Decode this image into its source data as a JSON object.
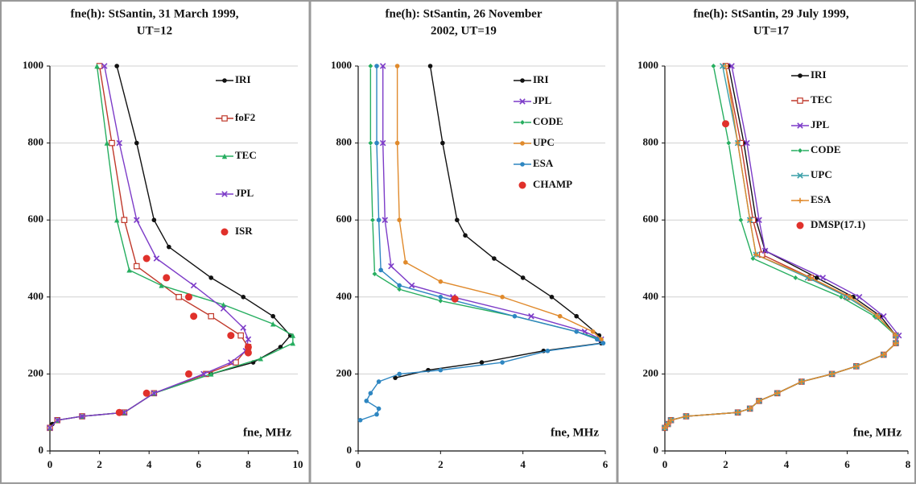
{
  "chart_data": [
    {
      "type": "line",
      "title": [
        "fne(h): StSantin, 31 March 1999,",
        "UT=12"
      ],
      "x_label": "fne, MHz",
      "xlim": [
        0,
        10
      ],
      "ylim": [
        0,
        1000
      ],
      "xticks": [
        0,
        2,
        4,
        6,
        8,
        10
      ],
      "yticks": [
        0,
        200,
        400,
        600,
        800,
        1000
      ],
      "grid": true,
      "legend": "upper right",
      "series": [
        {
          "name": "IRI",
          "color": "#111111",
          "marker": "circle",
          "line": true,
          "x": [
            2.7,
            3.5,
            4.2,
            4.8,
            6.5,
            7.8,
            9,
            9.7,
            9.3,
            8.2,
            6.5,
            4.2,
            3.0,
            1.3,
            0.3,
            0.1,
            0
          ],
          "values": [
            1000,
            800,
            600,
            530,
            450,
            400,
            350,
            300,
            270,
            230,
            200,
            150,
            100,
            90,
            80,
            70,
            60
          ]
        },
        {
          "name": "foF2",
          "color": "#c0392b",
          "marker": "square",
          "line": true,
          "x": [
            2.0,
            2.5,
            3.0,
            3.5,
            5.2,
            6.5,
            7.7,
            8.0,
            7.5,
            6.3,
            4.2,
            3.0,
            1.3,
            0.3,
            0
          ],
          "values": [
            1000,
            800,
            600,
            480,
            400,
            350,
            300,
            270,
            230,
            200,
            150,
            100,
            90,
            80,
            60
          ]
        },
        {
          "name": "TEC",
          "color": "#27ae60",
          "marker": "triangle",
          "line": true,
          "x": [
            1.9,
            2.3,
            2.7,
            3.2,
            4.5,
            7,
            9,
            9.8,
            9.8,
            8.5,
            6.5,
            4.2,
            3.0,
            1.3,
            0.3,
            0
          ],
          "values": [
            1000,
            800,
            600,
            470,
            430,
            380,
            330,
            300,
            280,
            240,
            200,
            150,
            100,
            90,
            80,
            60
          ]
        },
        {
          "name": "JPL",
          "color": "#7d3cc8",
          "marker": "x",
          "line": true,
          "x": [
            2.2,
            2.8,
            3.5,
            4.3,
            5.8,
            7,
            7.8,
            8.0,
            7.9,
            7.3,
            6.2,
            4.2,
            3.0,
            1.3,
            0.3,
            0
          ],
          "values": [
            1000,
            800,
            600,
            500,
            430,
            370,
            320,
            290,
            260,
            230,
            200,
            150,
            100,
            90,
            80,
            60
          ]
        },
        {
          "name": "ISR",
          "color": "#e0312b",
          "marker": "bigcircle",
          "line": false,
          "x": [
            3.9,
            4.7,
            5.6,
            5.8,
            7.3,
            8,
            8,
            5.6,
            3.9,
            2.8
          ],
          "values": [
            500,
            450,
            400,
            350,
            300,
            270,
            255,
            200,
            150,
            100
          ]
        }
      ]
    },
    {
      "type": "line",
      "title": [
        "fne(h): StSantin, 26 November",
        "2002, UT=19"
      ],
      "x_label": "fne, MHz",
      "xlim": [
        0,
        6
      ],
      "ylim": [
        0,
        1000
      ],
      "xticks": [
        0,
        2,
        4,
        6
      ],
      "yticks": [
        0,
        200,
        400,
        600,
        800,
        1000
      ],
      "grid": true,
      "legend": "upper right",
      "series": [
        {
          "name": "IRI",
          "color": "#111111",
          "marker": "circle",
          "line": true,
          "x": [
            1.75,
            2.05,
            2.4,
            2.6,
            3.3,
            4.0,
            4.7,
            5.3,
            5.85,
            5.9,
            4.5,
            3.0,
            1.7,
            0.9
          ],
          "values": [
            1000,
            800,
            600,
            560,
            500,
            450,
            400,
            350,
            300,
            280,
            260,
            230,
            210,
            190
          ]
        },
        {
          "name": "JPL",
          "color": "#7d3cc8",
          "marker": "x",
          "line": true,
          "x": [
            0.6,
            0.6,
            0.65,
            0.8,
            1.3,
            2.3,
            4.2,
            5.5,
            5.9
          ],
          "values": [
            1000,
            800,
            600,
            480,
            430,
            400,
            350,
            310,
            290
          ]
        },
        {
          "name": "CODE",
          "color": "#27ae60",
          "marker": "diamond",
          "line": true,
          "x": [
            0.3,
            0.3,
            0.35,
            0.4,
            1.0,
            2.0,
            3.8,
            5.3,
            5.9
          ],
          "values": [
            1000,
            800,
            600,
            460,
            420,
            390,
            350,
            310,
            290
          ]
        },
        {
          "name": "UPC",
          "color": "#e08a2c",
          "marker": "circle",
          "line": true,
          "x": [
            0.95,
            0.95,
            1.0,
            1.15,
            2.0,
            3.5,
            4.9,
            5.7,
            5.9
          ],
          "values": [
            1000,
            800,
            600,
            490,
            440,
            400,
            350,
            310,
            290
          ]
        },
        {
          "name": "ESA",
          "color": "#2e86c1",
          "marker": "circle",
          "line": true,
          "x": [
            0.45,
            0.45,
            0.5,
            0.55,
            1.0,
            2.0,
            3.8,
            5.3,
            5.8,
            5.95,
            4.6,
            3.5,
            2.0,
            1.0,
            0.5,
            0.3,
            0.2,
            0.5,
            0.45,
            0.05
          ],
          "values": [
            1000,
            800,
            600,
            470,
            430,
            400,
            350,
            310,
            290,
            280,
            260,
            230,
            210,
            200,
            180,
            150,
            130,
            110,
            95,
            80
          ]
        },
        {
          "name": "CHAMP",
          "color": "#e0312b",
          "marker": "bigcircle",
          "line": false,
          "x": [
            2.35
          ],
          "values": [
            395
          ]
        }
      ]
    },
    {
      "type": "line",
      "title": [
        "fne(h): StSantin, 29 July 1999,",
        "UT=17"
      ],
      "x_label": "fne, MHz",
      "xlim": [
        0,
        8
      ],
      "ylim": [
        0,
        1000
      ],
      "xticks": [
        0,
        2,
        4,
        6,
        8
      ],
      "yticks": [
        0,
        200,
        400,
        600,
        800,
        1000
      ],
      "grid": true,
      "legend": "upper right",
      "series": [
        {
          "name": "IRI",
          "color": "#111111",
          "marker": "circle",
          "line": true,
          "x": [
            2.1,
            2.6,
            3.0,
            3.3,
            5.0,
            6.2,
            7.1,
            7.6,
            7.6,
            7.2,
            6.3,
            5.5,
            4.5,
            3.7,
            3.1,
            2.8,
            2.4,
            0.7,
            0.2,
            0.1,
            0
          ],
          "values": [
            1000,
            800,
            600,
            520,
            450,
            400,
            350,
            300,
            280,
            250,
            220,
            200,
            180,
            150,
            130,
            110,
            100,
            90,
            80,
            70,
            60
          ]
        },
        {
          "name": "TEC",
          "color": "#c0392b",
          "marker": "square",
          "line": true,
          "x": [
            2.0,
            2.5,
            2.9,
            3.2,
            4.8,
            6.0,
            7.0,
            7.6,
            7.6,
            7.2,
            6.3,
            5.5,
            4.5,
            3.7,
            3.1,
            2.8,
            2.4,
            0.7,
            0.2,
            0.1,
            0
          ],
          "values": [
            1000,
            800,
            600,
            510,
            450,
            400,
            350,
            300,
            280,
            250,
            220,
            200,
            180,
            150,
            130,
            110,
            100,
            90,
            80,
            70,
            60
          ]
        },
        {
          "name": "JPL",
          "color": "#7d3cc8",
          "marker": "x",
          "line": true,
          "x": [
            2.2,
            2.7,
            3.1,
            3.3,
            5.2,
            6.4,
            7.2,
            7.7,
            7.6,
            7.2,
            6.3,
            5.5,
            4.5,
            3.7,
            3.1,
            2.8,
            2.4,
            0.7,
            0.2,
            0.1,
            0
          ],
          "values": [
            1000,
            800,
            600,
            520,
            450,
            400,
            350,
            300,
            280,
            250,
            220,
            200,
            180,
            150,
            130,
            110,
            100,
            90,
            80,
            70,
            60
          ]
        },
        {
          "name": "CODE",
          "color": "#27ae60",
          "marker": "diamond",
          "line": true,
          "x": [
            1.6,
            2.1,
            2.5,
            2.9,
            4.3,
            5.8,
            6.9,
            7.6,
            7.6,
            7.2,
            6.3,
            5.5,
            4.5,
            3.7,
            3.1,
            2.8,
            2.4,
            0.7,
            0.2,
            0.1,
            0
          ],
          "values": [
            1000,
            800,
            600,
            500,
            450,
            400,
            350,
            300,
            280,
            250,
            220,
            200,
            180,
            150,
            130,
            110,
            100,
            90,
            80,
            70,
            60
          ]
        },
        {
          "name": "UPC",
          "color": "#3a9fa8",
          "marker": "x",
          "line": true,
          "x": [
            1.9,
            2.4,
            2.8,
            3.0,
            4.7,
            6.0,
            7.0,
            7.6,
            7.6,
            7.2,
            6.3,
            5.5,
            4.5,
            3.7,
            3.1,
            2.8,
            2.4,
            0.7,
            0.2,
            0.1,
            0
          ],
          "values": [
            1000,
            800,
            600,
            510,
            450,
            400,
            350,
            300,
            280,
            250,
            220,
            200,
            180,
            150,
            130,
            110,
            100,
            90,
            80,
            70,
            60
          ]
        },
        {
          "name": "ESA",
          "color": "#e08a2c",
          "marker": "star",
          "line": true,
          "x": [
            2.0,
            2.4,
            2.8,
            3.0,
            4.8,
            6.1,
            7.0,
            7.6,
            7.6,
            7.2,
            6.3,
            5.5,
            4.5,
            3.7,
            3.1,
            2.8,
            2.4,
            0.7,
            0.2,
            0.1,
            0
          ],
          "values": [
            1000,
            800,
            600,
            510,
            450,
            400,
            350,
            300,
            280,
            250,
            220,
            200,
            180,
            150,
            130,
            110,
            100,
            90,
            80,
            70,
            60
          ]
        },
        {
          "name": "DMSP(17.1)",
          "color": "#e0312b",
          "marker": "bigcircle",
          "line": false,
          "x": [
            2
          ],
          "values": [
            850
          ]
        }
      ]
    }
  ]
}
